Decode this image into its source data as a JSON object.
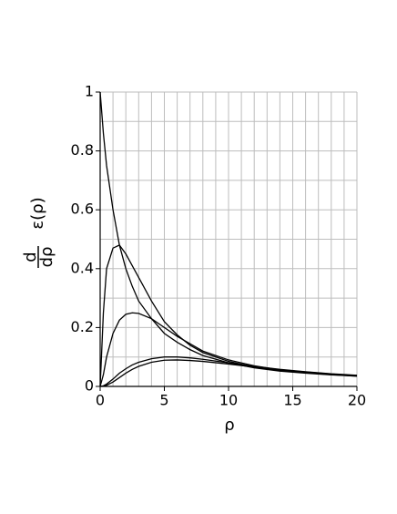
{
  "chart_data": {
    "type": "line",
    "ylabel": {
      "numerator": "d",
      "denominator": "dρ",
      "expression": "ε(ρ)"
    },
    "xlabel": "ρ",
    "x": [
      0,
      0.25,
      0.5,
      1,
      1.5,
      2,
      2.5,
      3,
      4,
      5,
      6,
      7,
      8,
      10,
      12,
      14,
      16,
      18,
      20
    ],
    "series": [
      {
        "color": "#000000",
        "values": [
          1,
          0.86,
          0.75,
          0.6,
          0.48,
          0.4,
          0.34,
          0.29,
          0.23,
          0.18,
          0.15,
          0.125,
          0.105,
          0.08,
          0.063,
          0.052,
          0.045,
          0.039,
          0.035
        ]
      },
      {
        "color": "#000000",
        "values": [
          0,
          0.25,
          0.4,
          0.47,
          0.48,
          0.45,
          0.41,
          0.37,
          0.29,
          0.22,
          0.175,
          0.14,
          0.115,
          0.085,
          0.066,
          0.054,
          0.046,
          0.04,
          0.035
        ]
      },
      {
        "color": "#000000",
        "values": [
          0,
          0.04,
          0.1,
          0.18,
          0.225,
          0.245,
          0.25,
          0.248,
          0.23,
          0.2,
          0.17,
          0.145,
          0.12,
          0.09,
          0.07,
          0.056,
          0.047,
          0.041,
          0.036
        ]
      },
      {
        "color": "#000000",
        "values": [
          0,
          0.002,
          0.008,
          0.025,
          0.045,
          0.06,
          0.073,
          0.082,
          0.094,
          0.1,
          0.1,
          0.097,
          0.092,
          0.08,
          0.068,
          0.058,
          0.05,
          0.043,
          0.038
        ]
      },
      {
        "color": "#000000",
        "values": [
          0,
          0.001,
          0.004,
          0.015,
          0.03,
          0.045,
          0.058,
          0.068,
          0.082,
          0.089,
          0.09,
          0.088,
          0.085,
          0.076,
          0.066,
          0.057,
          0.049,
          0.042,
          0.037
        ]
      }
    ],
    "xlim": [
      0,
      20
    ],
    "ylim": [
      0,
      1
    ],
    "xticks": [
      0,
      5,
      10,
      15,
      20
    ],
    "yticks": [
      0,
      0.2,
      0.4,
      0.6,
      0.8,
      1
    ],
    "xgrid": [
      1,
      2,
      3,
      4,
      5,
      6,
      7,
      8,
      9,
      10,
      11,
      12,
      13,
      14,
      15,
      16,
      17,
      18,
      19,
      20
    ],
    "ygrid": [
      0.1,
      0.2,
      0.3,
      0.4,
      0.5,
      0.6,
      0.7,
      0.8,
      0.9,
      1
    ],
    "grid": true
  }
}
